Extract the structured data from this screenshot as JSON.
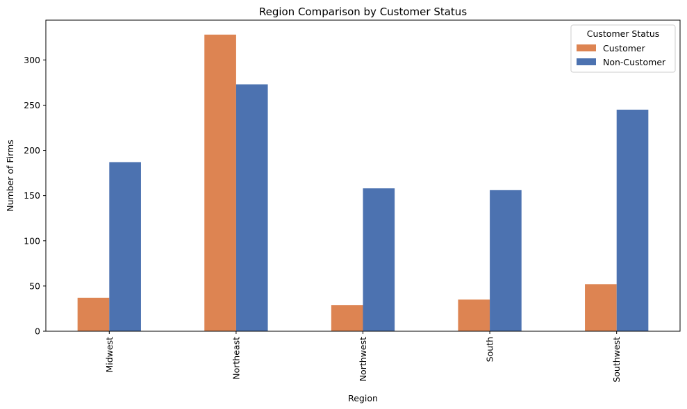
{
  "chart_data": {
    "type": "bar",
    "title": "Region Comparison by Customer Status",
    "xlabel": "Region",
    "ylabel": "Number of Firms",
    "categories": [
      "Midwest",
      "Northeast",
      "Northwest",
      "South",
      "Southwest"
    ],
    "series": [
      {
        "name": "Customer",
        "color": "#dd8452",
        "values": [
          37,
          328,
          29,
          35,
          52
        ]
      },
      {
        "name": "Non-Customer",
        "color": "#4c72b0",
        "values": [
          187,
          273,
          158,
          156,
          245
        ]
      }
    ],
    "ylim": [
      0,
      344
    ],
    "yticks": [
      0,
      50,
      100,
      150,
      200,
      250,
      300
    ],
    "grid": false,
    "legend": {
      "title": "Customer Status",
      "placement": "top-right"
    },
    "x_tick_rotation": "vertical"
  }
}
